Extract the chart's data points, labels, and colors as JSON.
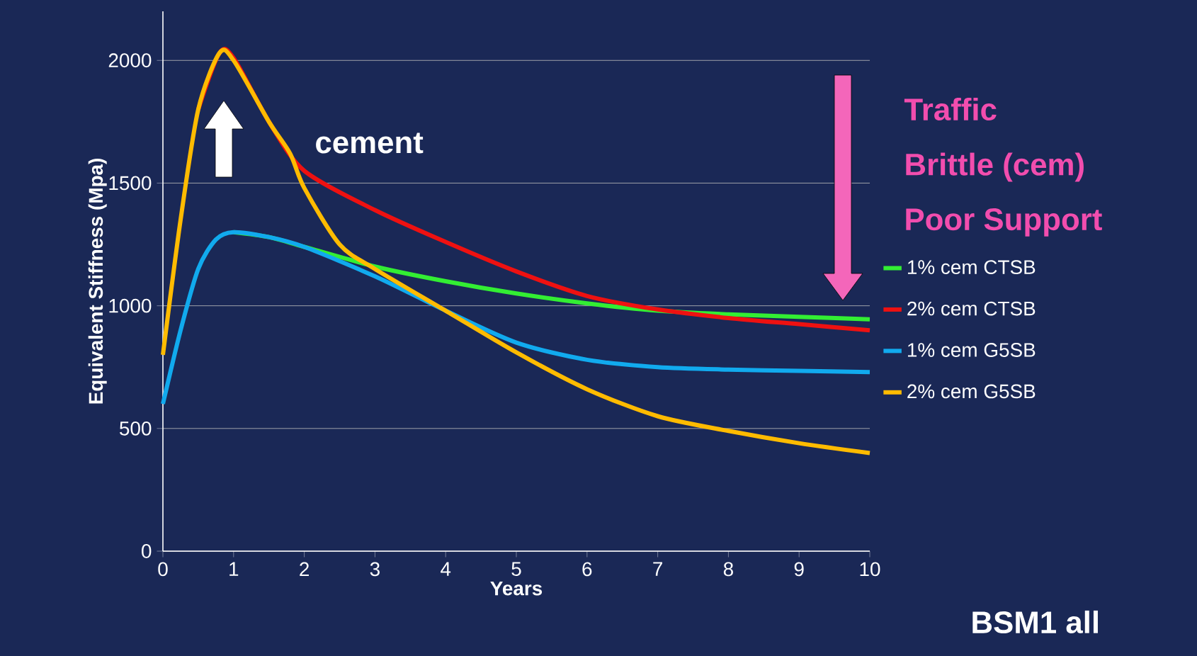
{
  "chart_data": {
    "type": "line",
    "xlabel": "Years",
    "ylabel": "Equivalent Stiffness (Mpa)",
    "xlim": [
      0,
      10
    ],
    "ylim": [
      0,
      2200
    ],
    "xticks": [
      0,
      1,
      2,
      3,
      4,
      5,
      6,
      7,
      8,
      9,
      10
    ],
    "yticks": [
      0,
      500,
      1000,
      1500,
      2000
    ],
    "grid": "y",
    "legend": "right",
    "series": [
      {
        "name": "1% cem CTSB",
        "color": "#33ee33",
        "x": [
          1,
          1.5,
          2,
          3,
          4,
          5,
          6,
          7,
          8,
          9,
          10
        ],
        "values": [
          1300,
          1280,
          1240,
          1160,
          1100,
          1050,
          1010,
          980,
          965,
          955,
          945
        ]
      },
      {
        "name": "2% cem CTSB",
        "color": "#ee1111",
        "x": [
          0.5,
          0.8,
          1,
          1.5,
          2,
          3,
          4,
          5,
          6,
          7,
          8,
          9,
          10
        ],
        "values": [
          1800,
          2030,
          2010,
          1750,
          1550,
          1390,
          1260,
          1140,
          1040,
          985,
          950,
          925,
          900
        ]
      },
      {
        "name": "1% cem G5SB",
        "color": "#11aaee",
        "x": [
          0,
          0.25,
          0.5,
          0.75,
          1,
          1.5,
          2,
          3,
          4,
          5,
          6,
          7,
          8,
          9,
          10
        ],
        "values": [
          600,
          900,
          1150,
          1270,
          1300,
          1280,
          1240,
          1120,
          980,
          850,
          780,
          750,
          740,
          735,
          730
        ]
      },
      {
        "name": "2% cem G5SB",
        "color": "#ffbb00",
        "x": [
          0,
          0.25,
          0.5,
          0.8,
          1,
          1.5,
          1.8,
          2,
          2.5,
          3,
          4,
          5,
          6,
          7,
          8,
          9,
          10
        ],
        "values": [
          800,
          1350,
          1800,
          2030,
          2000,
          1750,
          1620,
          1480,
          1250,
          1150,
          980,
          810,
          660,
          550,
          490,
          440,
          400
        ]
      }
    ],
    "annotations": [
      "cement",
      "Traffic",
      "Brittle (cem)",
      "Poor Support",
      "BSM1 all"
    ]
  }
}
